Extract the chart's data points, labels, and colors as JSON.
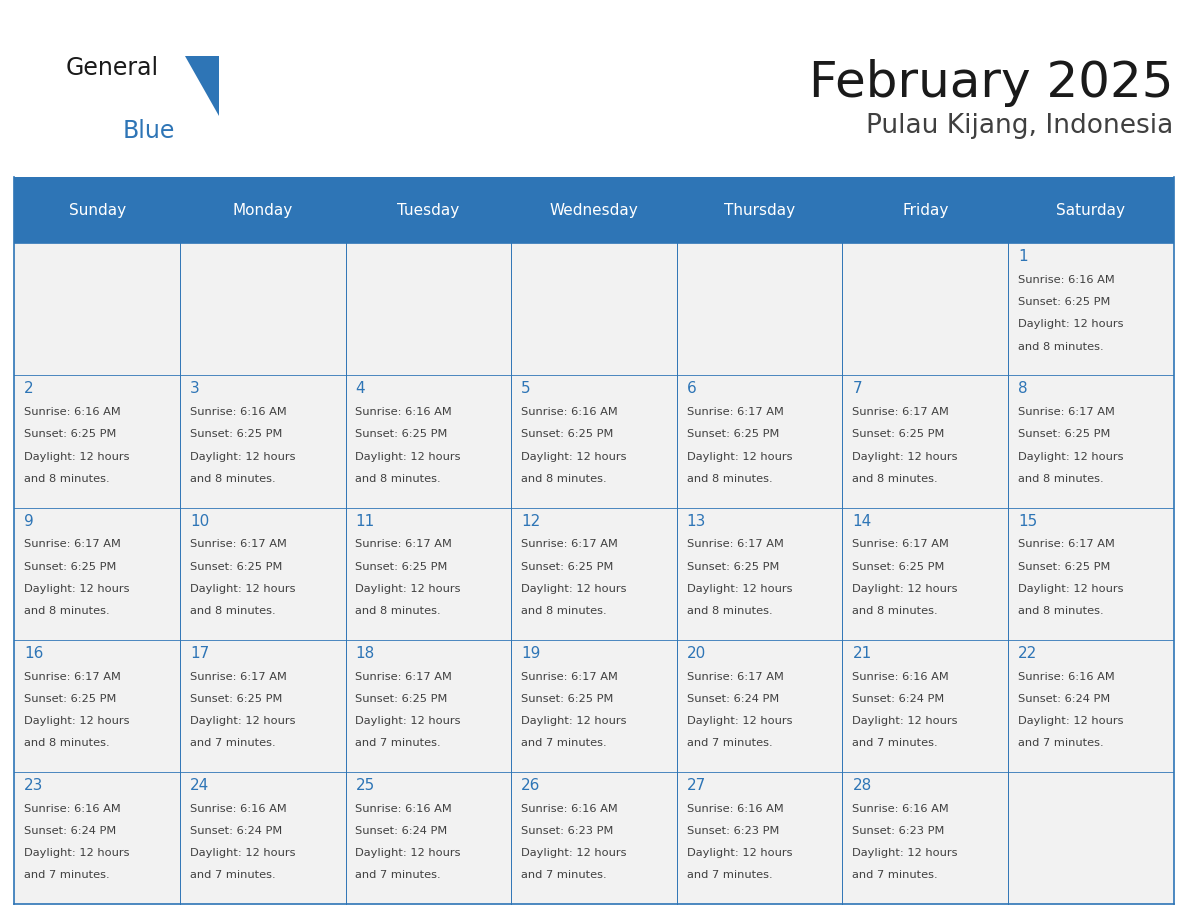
{
  "title": "February 2025",
  "subtitle": "Pulau Kijang, Indonesia",
  "days_of_week": [
    "Sunday",
    "Monday",
    "Tuesday",
    "Wednesday",
    "Thursday",
    "Friday",
    "Saturday"
  ],
  "header_bg": "#2E75B6",
  "header_text": "#FFFFFF",
  "cell_bg": "#F2F2F2",
  "day_number_color": "#2E75B6",
  "info_text_color": "#404040",
  "border_color": "#2E75B6",
  "title_color": "#1a1a1a",
  "subtitle_color": "#404040",
  "calendar_data": [
    [
      null,
      null,
      null,
      null,
      null,
      null,
      {
        "day": 1,
        "sunrise": "6:16 AM",
        "sunset": "6:25 PM",
        "daylight": "12 hours",
        "daylight2": "and 8 minutes."
      }
    ],
    [
      {
        "day": 2,
        "sunrise": "6:16 AM",
        "sunset": "6:25 PM",
        "daylight": "12 hours",
        "daylight2": "and 8 minutes."
      },
      {
        "day": 3,
        "sunrise": "6:16 AM",
        "sunset": "6:25 PM",
        "daylight": "12 hours",
        "daylight2": "and 8 minutes."
      },
      {
        "day": 4,
        "sunrise": "6:16 AM",
        "sunset": "6:25 PM",
        "daylight": "12 hours",
        "daylight2": "and 8 minutes."
      },
      {
        "day": 5,
        "sunrise": "6:16 AM",
        "sunset": "6:25 PM",
        "daylight": "12 hours",
        "daylight2": "and 8 minutes."
      },
      {
        "day": 6,
        "sunrise": "6:17 AM",
        "sunset": "6:25 PM",
        "daylight": "12 hours",
        "daylight2": "and 8 minutes."
      },
      {
        "day": 7,
        "sunrise": "6:17 AM",
        "sunset": "6:25 PM",
        "daylight": "12 hours",
        "daylight2": "and 8 minutes."
      },
      {
        "day": 8,
        "sunrise": "6:17 AM",
        "sunset": "6:25 PM",
        "daylight": "12 hours",
        "daylight2": "and 8 minutes."
      }
    ],
    [
      {
        "day": 9,
        "sunrise": "6:17 AM",
        "sunset": "6:25 PM",
        "daylight": "12 hours",
        "daylight2": "and 8 minutes."
      },
      {
        "day": 10,
        "sunrise": "6:17 AM",
        "sunset": "6:25 PM",
        "daylight": "12 hours",
        "daylight2": "and 8 minutes."
      },
      {
        "day": 11,
        "sunrise": "6:17 AM",
        "sunset": "6:25 PM",
        "daylight": "12 hours",
        "daylight2": "and 8 minutes."
      },
      {
        "day": 12,
        "sunrise": "6:17 AM",
        "sunset": "6:25 PM",
        "daylight": "12 hours",
        "daylight2": "and 8 minutes."
      },
      {
        "day": 13,
        "sunrise": "6:17 AM",
        "sunset": "6:25 PM",
        "daylight": "12 hours",
        "daylight2": "and 8 minutes."
      },
      {
        "day": 14,
        "sunrise": "6:17 AM",
        "sunset": "6:25 PM",
        "daylight": "12 hours",
        "daylight2": "and 8 minutes."
      },
      {
        "day": 15,
        "sunrise": "6:17 AM",
        "sunset": "6:25 PM",
        "daylight": "12 hours",
        "daylight2": "and 8 minutes."
      }
    ],
    [
      {
        "day": 16,
        "sunrise": "6:17 AM",
        "sunset": "6:25 PM",
        "daylight": "12 hours",
        "daylight2": "and 8 minutes."
      },
      {
        "day": 17,
        "sunrise": "6:17 AM",
        "sunset": "6:25 PM",
        "daylight": "12 hours",
        "daylight2": "and 7 minutes."
      },
      {
        "day": 18,
        "sunrise": "6:17 AM",
        "sunset": "6:25 PM",
        "daylight": "12 hours",
        "daylight2": "and 7 minutes."
      },
      {
        "day": 19,
        "sunrise": "6:17 AM",
        "sunset": "6:25 PM",
        "daylight": "12 hours",
        "daylight2": "and 7 minutes."
      },
      {
        "day": 20,
        "sunrise": "6:17 AM",
        "sunset": "6:24 PM",
        "daylight": "12 hours",
        "daylight2": "and 7 minutes."
      },
      {
        "day": 21,
        "sunrise": "6:16 AM",
        "sunset": "6:24 PM",
        "daylight": "12 hours",
        "daylight2": "and 7 minutes."
      },
      {
        "day": 22,
        "sunrise": "6:16 AM",
        "sunset": "6:24 PM",
        "daylight": "12 hours",
        "daylight2": "and 7 minutes."
      }
    ],
    [
      {
        "day": 23,
        "sunrise": "6:16 AM",
        "sunset": "6:24 PM",
        "daylight": "12 hours",
        "daylight2": "and 7 minutes."
      },
      {
        "day": 24,
        "sunrise": "6:16 AM",
        "sunset": "6:24 PM",
        "daylight": "12 hours",
        "daylight2": "and 7 minutes."
      },
      {
        "day": 25,
        "sunrise": "6:16 AM",
        "sunset": "6:24 PM",
        "daylight": "12 hours",
        "daylight2": "and 7 minutes."
      },
      {
        "day": 26,
        "sunrise": "6:16 AM",
        "sunset": "6:23 PM",
        "daylight": "12 hours",
        "daylight2": "and 7 minutes."
      },
      {
        "day": 27,
        "sunrise": "6:16 AM",
        "sunset": "6:23 PM",
        "daylight": "12 hours",
        "daylight2": "and 7 minutes."
      },
      {
        "day": 28,
        "sunrise": "6:16 AM",
        "sunset": "6:23 PM",
        "daylight": "12 hours",
        "daylight2": "and 7 minutes."
      },
      null
    ]
  ],
  "num_rows": 5,
  "num_cols": 7,
  "fig_width": 11.88,
  "fig_height": 9.18,
  "header_font_size": 11,
  "day_number_font_size": 11,
  "info_font_size": 8.2,
  "title_font_size": 36,
  "subtitle_font_size": 19,
  "logo_general_fontsize": 17,
  "logo_blue_fontsize": 17
}
